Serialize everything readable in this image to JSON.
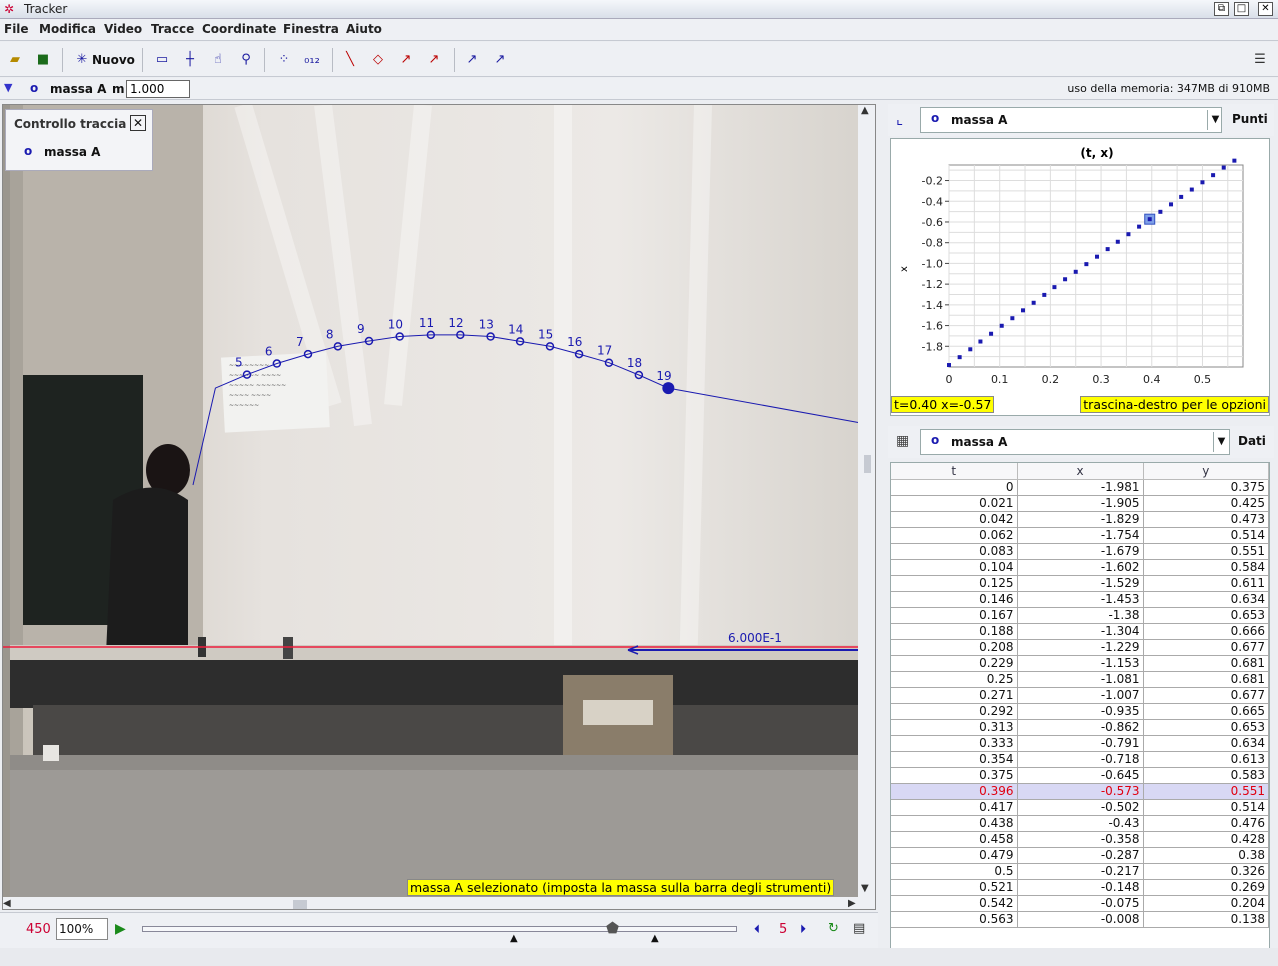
{
  "window": {
    "title": "Tracker"
  },
  "menu": [
    "File",
    "Modifica",
    "Video",
    "Tracce",
    "Coordinate",
    "Finestra",
    "Aiuto"
  ],
  "toolbar": {
    "new_label": "Nuovo"
  },
  "trackbar": {
    "track_name": "massa A",
    "mass_label": "m",
    "mass_value": "1.000",
    "memory": "uso della memoria: 347MB di 910MB"
  },
  "track_control": {
    "title": "Controllo traccia",
    "item": "massa A"
  },
  "video": {
    "point_labels": [
      "5",
      "6",
      "7",
      "8",
      "9",
      "10",
      "11",
      "12",
      "13",
      "14",
      "15",
      "16",
      "17",
      "18",
      "19"
    ],
    "axis_label": "6.000E-1",
    "status_msg": "massa A selezionato (imposta la massa sulla barra degli strumenti)"
  },
  "controls": {
    "frame": "450",
    "zoom": "100%",
    "step": "5"
  },
  "plot_panel": {
    "track": "massa A",
    "button": "Punti",
    "readout": "t=0.40  x=-0.57",
    "hint": "trascina-destro per le opzioni"
  },
  "chart_data": {
    "type": "scatter",
    "title": "(t, x)",
    "xlabel": "",
    "ylabel": "x",
    "xlim": [
      0,
      0.58
    ],
    "ylim": [
      -2.0,
      -0.05
    ],
    "x_ticks": [
      "0",
      "0.1",
      "0.2",
      "0.3",
      "0.4",
      "0.5"
    ],
    "y_ticks": [
      "-0.2",
      "-0.4",
      "-0.6",
      "-0.8",
      "-1.0",
      "-1.2",
      "-1.4",
      "-1.6",
      "-1.8"
    ],
    "x": [
      0,
      0.021,
      0.042,
      0.062,
      0.083,
      0.104,
      0.125,
      0.146,
      0.167,
      0.188,
      0.208,
      0.229,
      0.25,
      0.271,
      0.292,
      0.313,
      0.333,
      0.354,
      0.375,
      0.396,
      0.417,
      0.438,
      0.458,
      0.479,
      0.5,
      0.521,
      0.542,
      0.563
    ],
    "y": [
      -1.981,
      -1.905,
      -1.829,
      -1.754,
      -1.679,
      -1.602,
      -1.529,
      -1.453,
      -1.38,
      -1.304,
      -1.229,
      -1.153,
      -1.081,
      -1.007,
      -0.935,
      -0.862,
      -0.791,
      -0.718,
      -0.645,
      -0.573,
      -0.502,
      -0.43,
      -0.358,
      -0.287,
      -0.217,
      -0.148,
      -0.075,
      -0.008
    ],
    "selected_index": 19,
    "grid": true
  },
  "table_panel": {
    "track": "massa A",
    "button": "Dati",
    "columns": [
      "t",
      "x",
      "y"
    ],
    "selected_index": 19,
    "rows": [
      [
        "0",
        "-1.981",
        "0.375"
      ],
      [
        "0.021",
        "-1.905",
        "0.425"
      ],
      [
        "0.042",
        "-1.829",
        "0.473"
      ],
      [
        "0.062",
        "-1.754",
        "0.514"
      ],
      [
        "0.083",
        "-1.679",
        "0.551"
      ],
      [
        "0.104",
        "-1.602",
        "0.584"
      ],
      [
        "0.125",
        "-1.529",
        "0.611"
      ],
      [
        "0.146",
        "-1.453",
        "0.634"
      ],
      [
        "0.167",
        "-1.38",
        "0.653"
      ],
      [
        "0.188",
        "-1.304",
        "0.666"
      ],
      [
        "0.208",
        "-1.229",
        "0.677"
      ],
      [
        "0.229",
        "-1.153",
        "0.681"
      ],
      [
        "0.25",
        "-1.081",
        "0.681"
      ],
      [
        "0.271",
        "-1.007",
        "0.677"
      ],
      [
        "0.292",
        "-0.935",
        "0.665"
      ],
      [
        "0.313",
        "-0.862",
        "0.653"
      ],
      [
        "0.333",
        "-0.791",
        "0.634"
      ],
      [
        "0.354",
        "-0.718",
        "0.613"
      ],
      [
        "0.375",
        "-0.645",
        "0.583"
      ],
      [
        "0.396",
        "-0.573",
        "0.551"
      ],
      [
        "0.417",
        "-0.502",
        "0.514"
      ],
      [
        "0.438",
        "-0.43",
        "0.476"
      ],
      [
        "0.458",
        "-0.358",
        "0.428"
      ],
      [
        "0.479",
        "-0.287",
        "0.38"
      ],
      [
        "0.5",
        "-0.217",
        "0.326"
      ],
      [
        "0.521",
        "-0.148",
        "0.269"
      ],
      [
        "0.542",
        "-0.075",
        "0.204"
      ],
      [
        "0.563",
        "-0.008",
        "0.138"
      ]
    ]
  }
}
